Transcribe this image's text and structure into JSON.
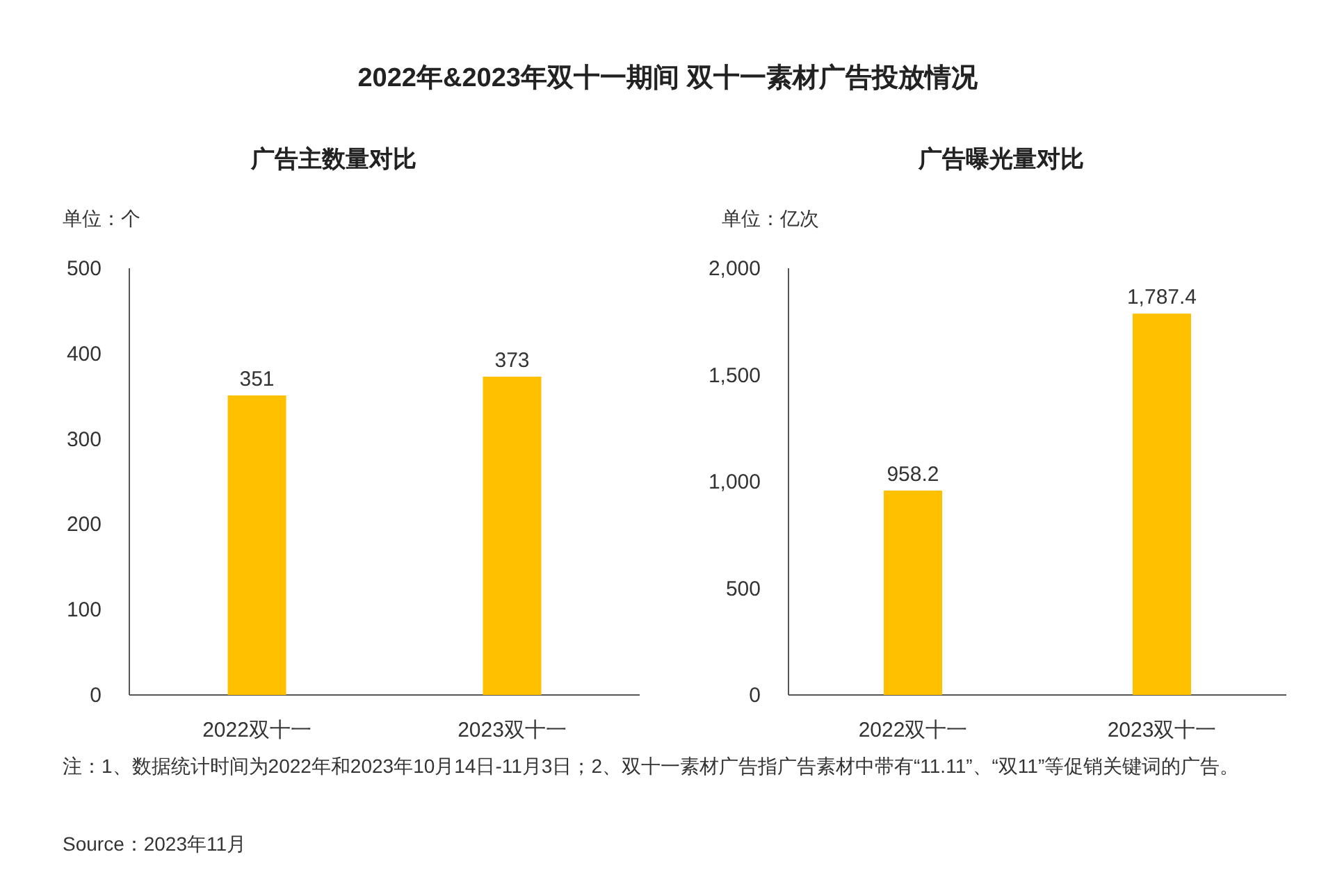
{
  "chart_data": [
    {
      "type": "bar",
      "title": "2022年&2023年双十一期间 双十一素材广告投放情况",
      "subtitle": "广告主数量对比",
      "ylabel": "单位：个",
      "categories": [
        "2022双十一",
        "2023双十一"
      ],
      "series": [
        {
          "color": "#ffc000",
          "values": [
            351,
            373
          ]
        }
      ],
      "ylim": [
        0,
        500
      ],
      "yticks": [
        0,
        100,
        200,
        300,
        400,
        500
      ],
      "data_labels": true
    },
    {
      "type": "bar",
      "subtitle": "广告曝光量对比",
      "ylabel": "单位：亿次",
      "categories": [
        "2022双十一",
        "2023双十一"
      ],
      "series": [
        {
          "color": "#ffc000",
          "values": [
            958.2,
            1787.4
          ]
        }
      ],
      "value_labels": [
        "958.2",
        "1,787.4"
      ],
      "ylim": [
        0,
        2000
      ],
      "yticks": [
        0,
        {
          "value": 500,
          "label": "500"
        },
        {
          "value": 1000,
          "label": "1,000"
        },
        {
          "value": 1500,
          "label": "1,500"
        },
        {
          "value": 2000,
          "label": "2,000"
        }
      ],
      "annotations": [
        "注：1、数据统计时间为2022年和2023年10月14日-11月3日；2、双十一素材广告指广告素材中带有“11.11”、“双11”等促销关键词的广告。",
        "Source：2023年11月"
      ]
    }
  ]
}
